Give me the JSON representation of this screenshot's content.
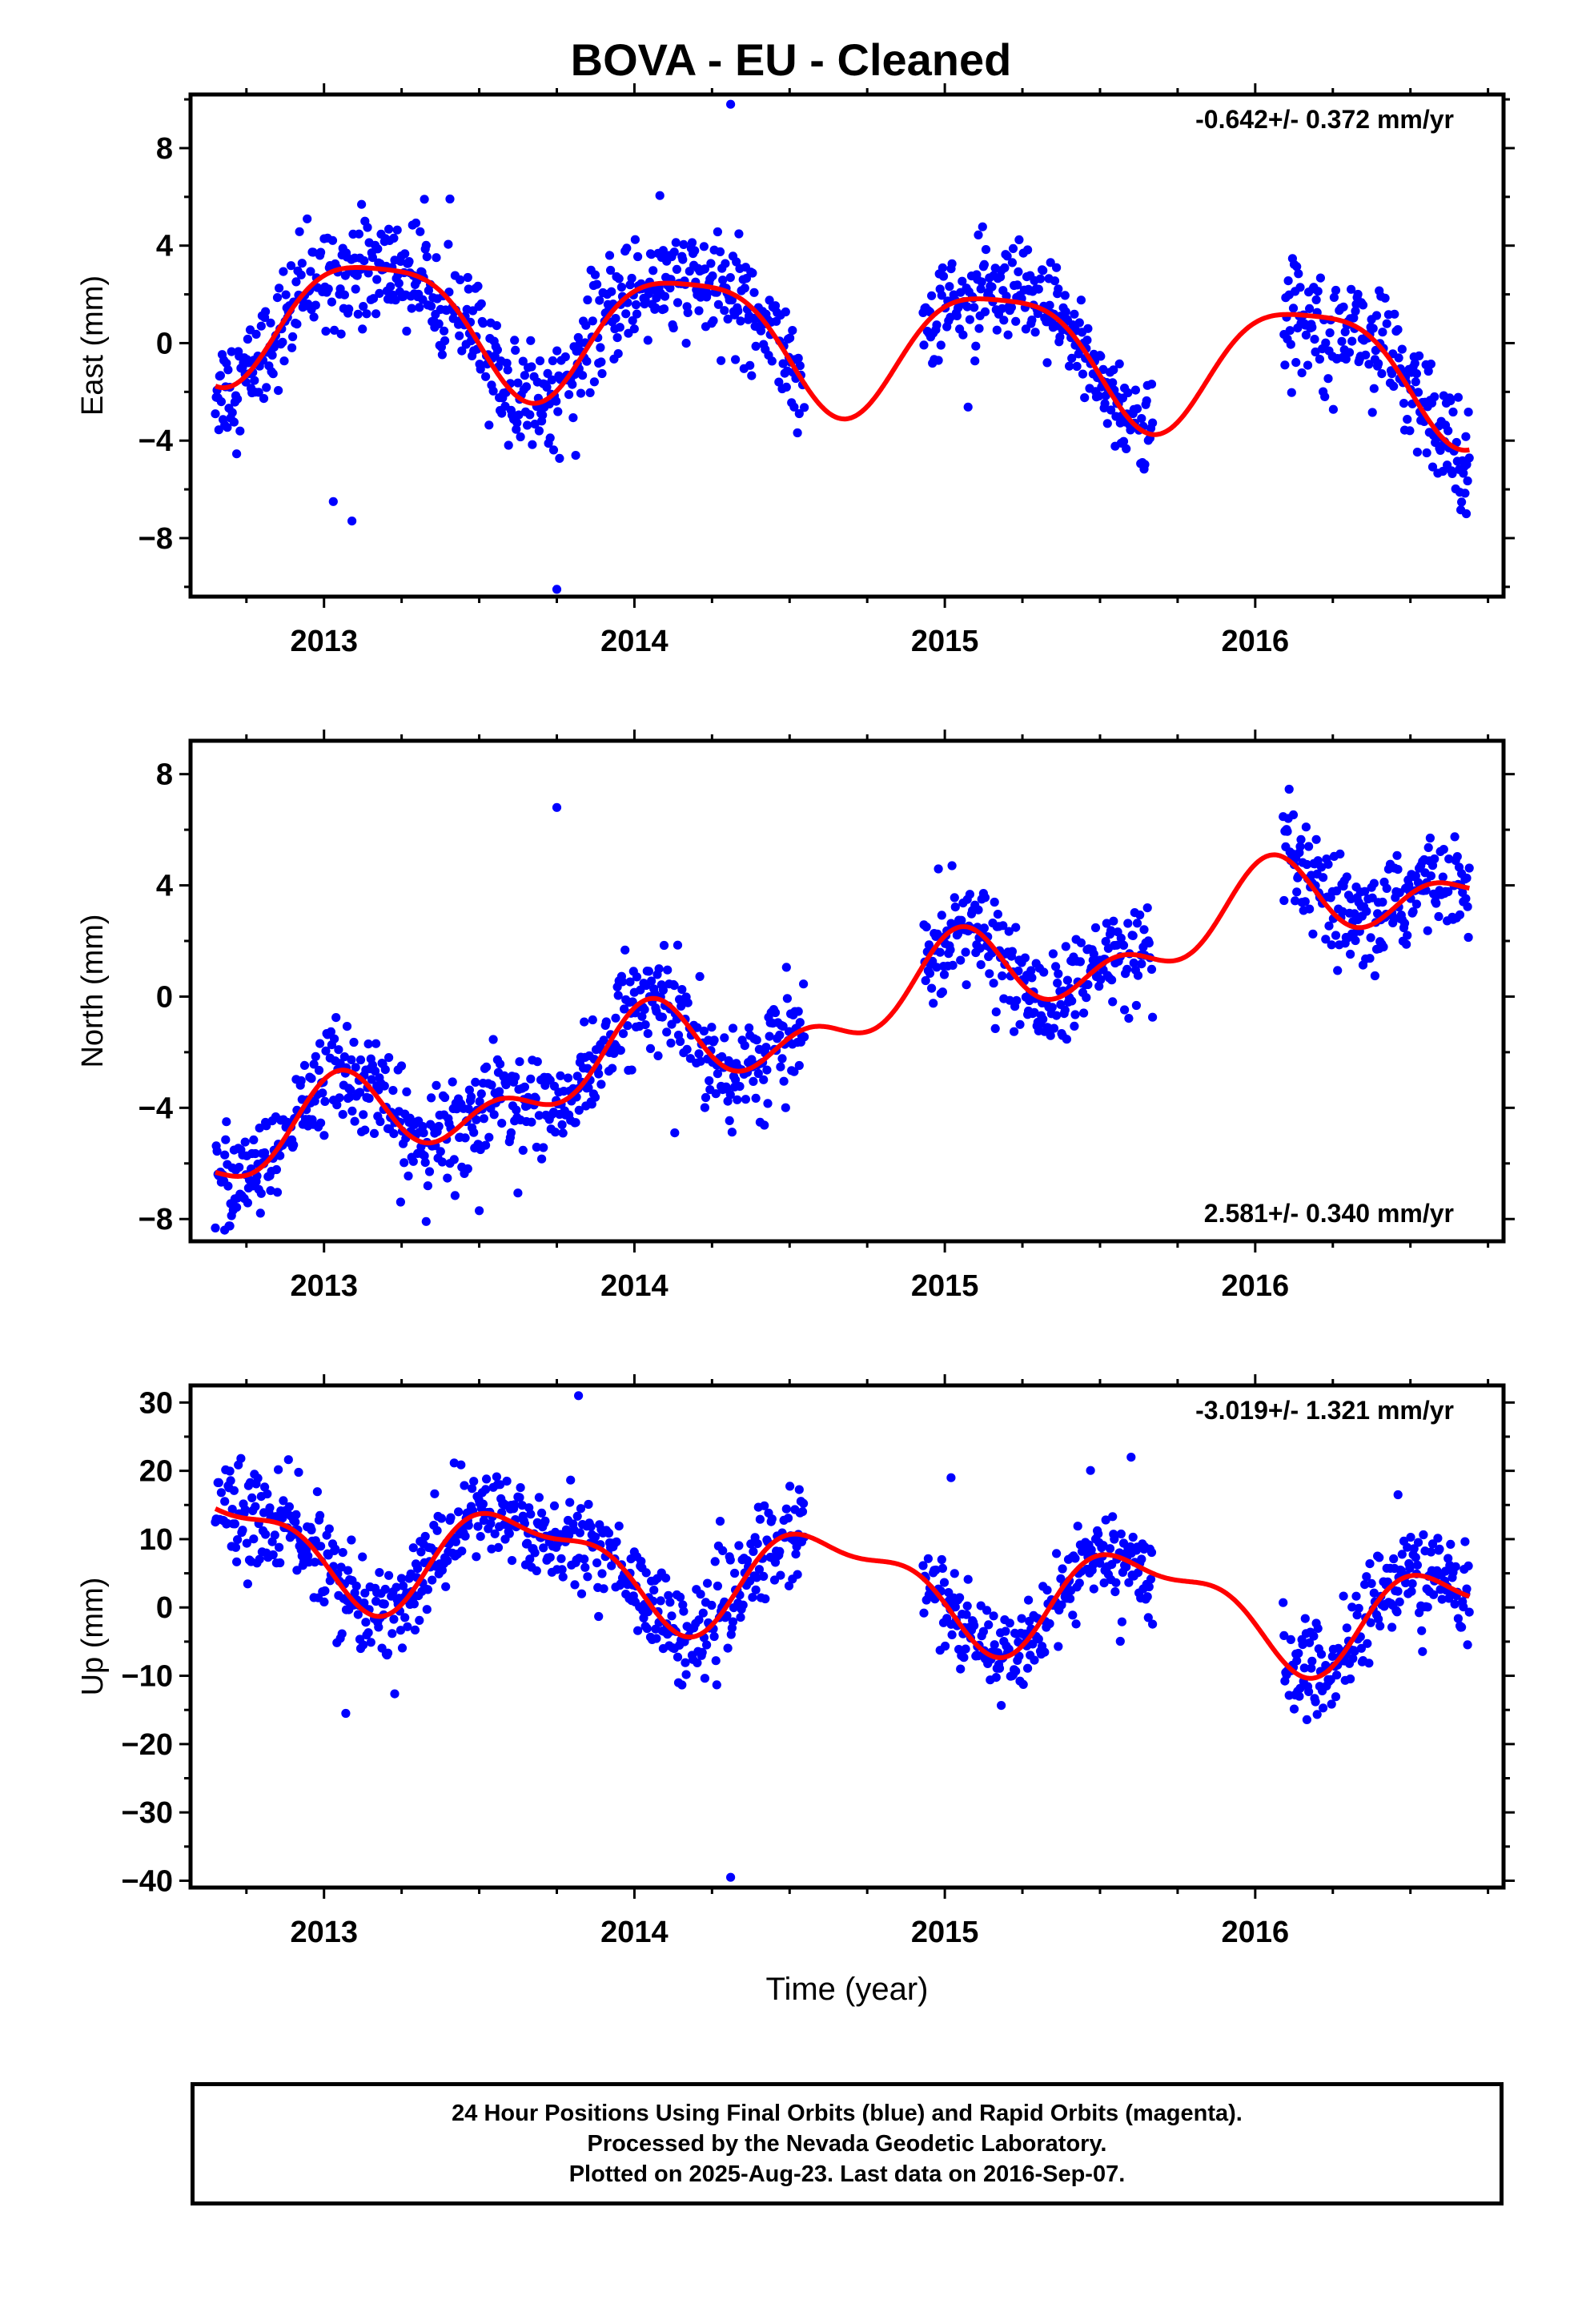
{
  "title": "BOVA  - EU - Cleaned",
  "colors": {
    "points": "#0000ff",
    "fit": "#ff0000",
    "axis": "#000000"
  },
  "footer": {
    "line1": "24 Hour Positions Using Final Orbits (blue) and Rapid Orbits (magenta).",
    "line2": "Processed by the Nevada Geodetic Laboratory.",
    "line3": "Plotted on 2025-Aug-23. Last data on 2016-Sep-07."
  },
  "chart_data": [
    {
      "type": "scatter",
      "id": "east",
      "ylabel": "East (mm)",
      "xlabel": "",
      "xlim": [
        2012.57,
        2016.8
      ],
      "ylim": [
        -10.4,
        10.2
      ],
      "xticks": [
        2013,
        2014,
        2015,
        2016
      ],
      "yticks": [
        -8,
        -4,
        0,
        4,
        8
      ],
      "rate_label": "-0.642+/- 0.372 mm/yr",
      "rate_position": "top-right",
      "data_segments": [
        [
          2012.65,
          2014.55
        ],
        [
          2014.93,
          2015.67
        ],
        [
          2016.09,
          2016.69
        ]
      ],
      "fit": {
        "trend": -0.642,
        "mean": 0.2,
        "harmonics": [
          {
            "cycles_per_year": 1,
            "amplitude": 2.6,
            "phase": 0.5
          },
          {
            "cycles_per_year": 2,
            "amplitude": 0.6,
            "phase": 2.5
          }
        ]
      },
      "noise_sd": 1.1,
      "outliers": [
        [
          2014.31,
          9.8
        ],
        [
          2013.75,
          -10.1
        ],
        [
          2013.09,
          -7.3
        ],
        [
          2013.03,
          -6.5
        ],
        [
          2016.68,
          -7.0
        ]
      ]
    },
    {
      "type": "scatter",
      "id": "north",
      "ylabel": "North (mm)",
      "xlabel": "",
      "xlim": [
        2012.57,
        2016.8
      ],
      "ylim": [
        -8.8,
        9.2
      ],
      "xticks": [
        2013,
        2014,
        2015,
        2016
      ],
      "yticks": [
        -8,
        -4,
        0,
        4,
        8
      ],
      "rate_label": "2.581+/- 0.340 mm/yr",
      "rate_position": "bottom-right",
      "data_segments": [
        [
          2012.65,
          2014.55
        ],
        [
          2014.93,
          2015.67
        ],
        [
          2016.09,
          2016.69
        ]
      ],
      "fit": {
        "trend": 2.581,
        "mean": -1.0,
        "harmonics": [
          {
            "cycles_per_year": 1,
            "amplitude": 1.2,
            "phase": 1.4
          },
          {
            "cycles_per_year": 2,
            "amplitude": 0.9,
            "phase": 0.9
          }
        ]
      },
      "noise_sd": 0.9,
      "outliers": [
        [
          2013.75,
          6.8
        ],
        [
          2013.5,
          -7.7
        ],
        [
          2014.13,
          -4.9
        ],
        [
          2012.68,
          -8.4
        ]
      ]
    },
    {
      "type": "scatter",
      "id": "up",
      "ylabel": "Up (mm)",
      "xlabel": "Time (year)",
      "xlim": [
        2012.57,
        2016.8
      ],
      "ylim": [
        -41,
        32.5
      ],
      "xticks": [
        2013,
        2014,
        2015,
        2016
      ],
      "yticks": [
        -40,
        -30,
        -20,
        -10,
        0,
        10,
        20,
        30
      ],
      "rate_label": "-3.019+/- 1.321 mm/yr",
      "rate_position": "top-right",
      "data_segments": [
        [
          2012.65,
          2014.55
        ],
        [
          2014.93,
          2015.67
        ],
        [
          2016.09,
          2016.69
        ]
      ],
      "fit": {
        "trend": -3.019,
        "mean": 4.3,
        "harmonics": [
          {
            "cycles_per_year": 1,
            "amplitude": 7.0,
            "phase": 3.8
          },
          {
            "cycles_per_year": 2,
            "amplitude": 2.8,
            "phase": 2.3
          }
        ]
      },
      "noise_sd": 3.6,
      "outliers": [
        [
          2013.82,
          31.0
        ],
        [
          2014.31,
          -39.5
        ],
        [
          2013.07,
          -15.5
        ],
        [
          2015.02,
          19.0
        ],
        [
          2015.6,
          22.0
        ],
        [
          2016.46,
          16.5
        ]
      ]
    }
  ]
}
